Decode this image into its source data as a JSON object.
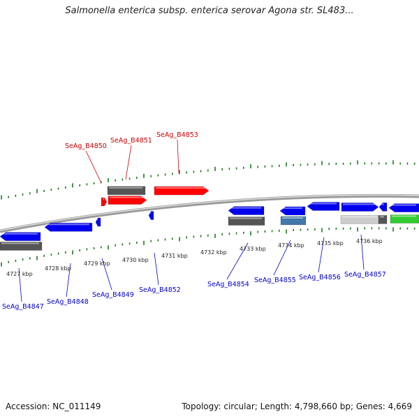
{
  "title": "Salmonella enterica subsp. enterica serovar Agona str. SL483...",
  "footer": {
    "accession": "Accession: NC_011149",
    "summary": "Topology: circular; Length: 4,798,660 bp; Genes: 4,669"
  },
  "colors": {
    "highlight_gene": "#ff0000",
    "gene": "#0000ee",
    "gene_gray": "#555555",
    "gene_green": "#33cc33",
    "gene_steelblue": "#4477aa",
    "gene_lightgray": "#cccccc",
    "tick": "#1a7a1a",
    "backbone": "#888888",
    "red_label": "#cc0000",
    "blue_label": "#0000cc"
  },
  "scale_labels": [
    "4727 kbp",
    "4728 kbp",
    "4729 kbp",
    "4730 kbp",
    "4731 kbp",
    "4732 kbp",
    "4733 kbp",
    "4734 kbp",
    "4735 kbp",
    "4736 kbp"
  ],
  "gene_labels_top": [
    "SeAg_B4850",
    "SeAg_B4851",
    "SeAg_B4853"
  ],
  "gene_labels_bottom": [
    "SeAg_B4847",
    "SeAg_B4848",
    "SeAg_B4849",
    "SeAg_B4852",
    "SeAg_B4854",
    "SeAg_B4855",
    "SeAg_B4856",
    "SeAg_B4857"
  ]
}
